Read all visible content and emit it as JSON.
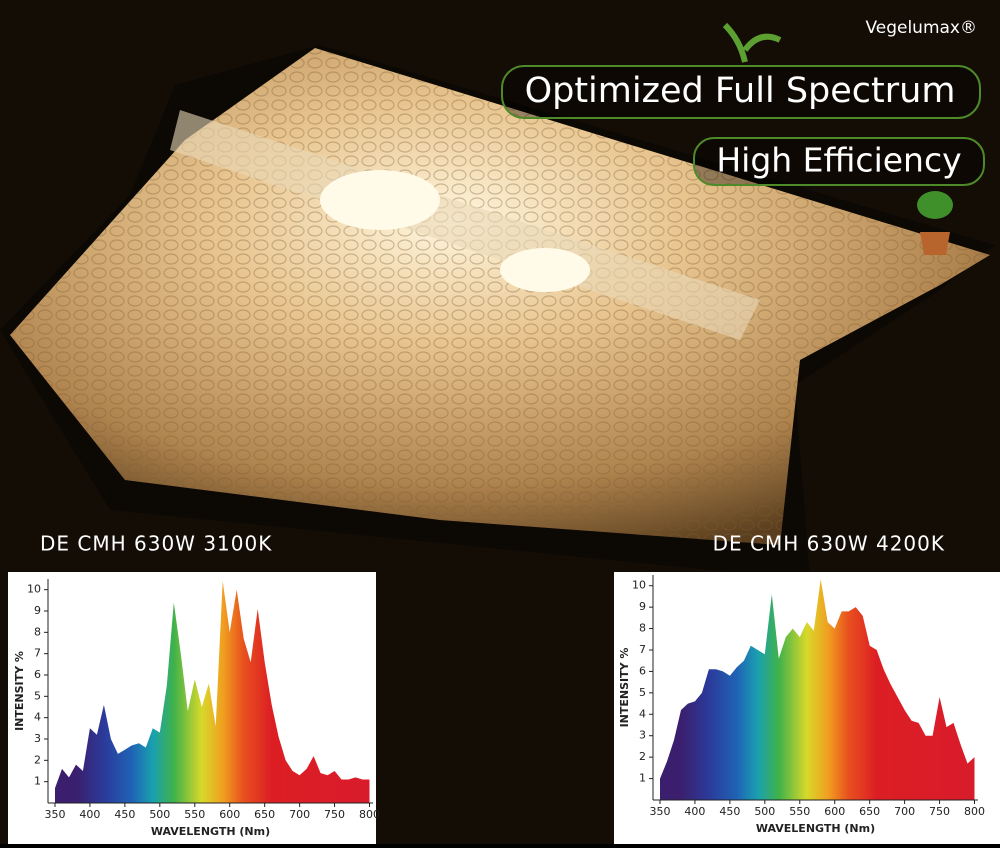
{
  "brand": "Vegelumax®",
  "headline": "Optimized Full Spectrum",
  "subheadline": "High Efficiency",
  "chart_data": [
    {
      "type": "area",
      "title": "DE CMH 630W 3100K",
      "x_label": "WAVELENGTH (Nm)",
      "y_label": "INTENSITY %",
      "x": [
        350,
        360,
        370,
        380,
        390,
        400,
        410,
        420,
        430,
        440,
        450,
        460,
        470,
        480,
        490,
        500,
        510,
        520,
        530,
        540,
        550,
        560,
        570,
        580,
        590,
        600,
        610,
        620,
        630,
        640,
        650,
        660,
        670,
        680,
        690,
        700,
        710,
        720,
        730,
        740,
        750,
        760,
        770,
        780,
        790,
        800
      ],
      "values": [
        0.7,
        1.6,
        1.2,
        1.8,
        1.5,
        3.5,
        3.2,
        4.6,
        3.0,
        2.3,
        2.5,
        2.7,
        2.8,
        2.6,
        3.5,
        3.3,
        5.5,
        9.4,
        7.0,
        4.3,
        5.8,
        4.5,
        5.6,
        3.6,
        10.4,
        8.0,
        10.0,
        7.7,
        6.6,
        9.1,
        6.6,
        4.6,
        3.1,
        2.0,
        1.5,
        1.3,
        1.6,
        2.2,
        1.4,
        1.3,
        1.5,
        1.1,
        1.1,
        1.2,
        1.1,
        1.1
      ],
      "xlim": [
        340,
        805
      ],
      "ylim": [
        0,
        10.5
      ],
      "xticks": [
        350,
        400,
        450,
        500,
        550,
        600,
        650,
        700,
        750,
        800
      ],
      "yticks": [
        1,
        2,
        3,
        4,
        5,
        6,
        7,
        8,
        9,
        10
      ]
    },
    {
      "type": "area",
      "title": "DE CMH 630W 4200K",
      "x_label": "WAVELENGTH (Nm)",
      "y_label": "INTENSITY %",
      "x": [
        350,
        360,
        370,
        380,
        390,
        400,
        410,
        420,
        430,
        440,
        450,
        460,
        470,
        480,
        490,
        500,
        510,
        520,
        530,
        540,
        550,
        560,
        570,
        580,
        590,
        600,
        610,
        620,
        630,
        640,
        650,
        660,
        670,
        680,
        690,
        700,
        710,
        720,
        730,
        740,
        750,
        760,
        770,
        780,
        790,
        800
      ],
      "values": [
        1.0,
        1.8,
        2.8,
        4.2,
        4.5,
        4.6,
        5.0,
        6.1,
        6.1,
        6.0,
        5.8,
        6.2,
        6.5,
        7.2,
        7.0,
        6.8,
        9.6,
        6.6,
        7.6,
        8.0,
        7.6,
        8.3,
        7.9,
        10.3,
        8.3,
        8.0,
        8.8,
        8.8,
        9.0,
        8.6,
        7.2,
        7.0,
        6.1,
        5.4,
        4.8,
        4.2,
        3.7,
        3.6,
        3.0,
        3.0,
        4.8,
        3.4,
        3.6,
        2.6,
        1.7,
        2.0
      ],
      "xlim": [
        340,
        805
      ],
      "ylim": [
        0,
        10.5
      ],
      "xticks": [
        350,
        400,
        450,
        500,
        550,
        600,
        650,
        700,
        750,
        800
      ],
      "yticks": [
        1,
        2,
        3,
        4,
        5,
        6,
        7,
        8,
        9,
        10
      ]
    }
  ]
}
